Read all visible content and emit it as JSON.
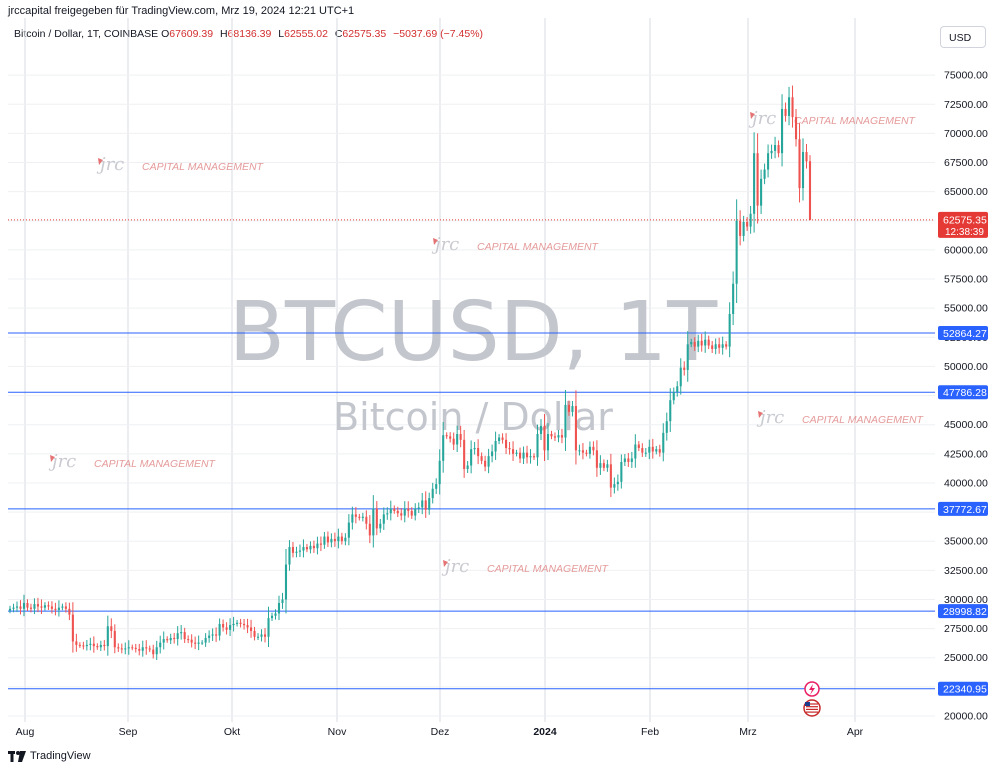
{
  "header": {
    "publisher": "jrccapital freigegeben für TradingView.com, Mrz 19, 2024 12:21 UTC+1"
  },
  "legend": {
    "symbol": "Bitcoin / Dollar, 1T, COINBASE",
    "open_label": "O",
    "open": "67609.39",
    "high_label": "H",
    "high": "68136.39",
    "low_label": "L",
    "low": "62555.02",
    "close_label": "C",
    "close": "62575.35",
    "change": "−5037.69 (−7.45%)"
  },
  "currency_button": "USD",
  "watermark": {
    "symbol": "BTCUSD, 1T",
    "name": "Bitcoin / Dollar"
  },
  "brand_watermark": {
    "mark": "jrc",
    "text": "CAPITAL MANAGEMENT"
  },
  "footer": {
    "brand": "TradingView"
  },
  "colors": {
    "up": "#26a69a",
    "down": "#ef5350",
    "hline": "#2962ff",
    "grid": "#d9dbe0",
    "price_tag": "#e53935",
    "level_tag": "#2962ff"
  },
  "chart_data": {
    "type": "candlestick",
    "title": "Bitcoin / Dollar, 1T, COINBASE",
    "ylim": [
      20000,
      77500
    ],
    "y_ticks": [
      "75000.00",
      "72500.00",
      "70000.00",
      "67500.00",
      "65000.00",
      "62500.00",
      "60000.00",
      "57500.00",
      "55000.00",
      "52500.00",
      "50000.00",
      "47500.00",
      "45000.00",
      "42500.00",
      "40000.00",
      "37500.00",
      "35000.00",
      "32500.00",
      "30000.00",
      "27500.00",
      "25000.00",
      "22500.00",
      "20000.00"
    ],
    "x_ticks": [
      "Aug",
      "Sep",
      "Okt",
      "Nov",
      "Dez",
      "2024",
      "Feb",
      "Mrz",
      "Apr"
    ],
    "horizontal_levels": [
      "52864.27",
      "47786.28",
      "37772.67",
      "28998.82",
      "22340.95"
    ],
    "last_price": {
      "value": "62575.35",
      "countdown": "12:38:39"
    },
    "ohlc_current": {
      "open": 67609.39,
      "high": 68136.39,
      "low": 62555.02,
      "close": 62575.35
    },
    "close_path": [
      [
        "Aug",
        29200
      ],
      [
        "Aug",
        29300
      ],
      [
        "Aug",
        29400
      ],
      [
        "Aug",
        29200
      ],
      [
        "Aug",
        29700
      ],
      [
        "Aug",
        29300
      ],
      [
        "Aug",
        29200
      ],
      [
        "Aug",
        29600
      ],
      [
        "Aug",
        29400
      ],
      [
        "Aug",
        29300
      ],
      [
        "Aug",
        29500
      ],
      [
        "Aug",
        29400
      ],
      [
        "Aug",
        29200
      ],
      [
        "Aug",
        29100
      ],
      [
        "Aug",
        29300
      ],
      [
        "Aug",
        29400
      ],
      [
        "Aug",
        29200
      ],
      [
        "Aug",
        28700
      ],
      [
        "Aug",
        26400
      ],
      [
        "Aug",
        26100
      ],
      [
        "Aug",
        26050
      ],
      [
        "Aug",
        26000
      ],
      [
        "Aug",
        26100
      ],
      [
        "Aug",
        26200
      ],
      [
        "Aug",
        26000
      ],
      [
        "Aug",
        25900
      ],
      [
        "Aug",
        26100
      ],
      [
        "Aug",
        26000
      ],
      [
        "Aug",
        27700
      ],
      [
        "Aug",
        27300
      ],
      [
        "Sep",
        25900
      ],
      [
        "Sep",
        25800
      ],
      [
        "Sep",
        25750
      ],
      [
        "Sep",
        25800
      ],
      [
        "Sep",
        25900
      ],
      [
        "Sep",
        25850
      ],
      [
        "Sep",
        25750
      ],
      [
        "Sep",
        25600
      ],
      [
        "Sep",
        25900
      ],
      [
        "Sep",
        25800
      ],
      [
        "Sep",
        25700
      ],
      [
        "Sep",
        25300
      ],
      [
        "Sep",
        25900
      ],
      [
        "Sep",
        26300
      ],
      [
        "Sep",
        26600
      ],
      [
        "Sep",
        26500
      ],
      [
        "Sep",
        26700
      ],
      [
        "Sep",
        26600
      ],
      [
        "Sep",
        27100
      ],
      [
        "Sep",
        27200
      ],
      [
        "Sep",
        26600
      ],
      [
        "Sep",
        26550
      ],
      [
        "Sep",
        26300
      ],
      [
        "Sep",
        26200
      ],
      [
        "Sep",
        26300
      ],
      [
        "Sep",
        26300
      ],
      [
        "Sep",
        26700
      ],
      [
        "Sep",
        26900
      ],
      [
        "Sep",
        27000
      ],
      [
        "Sep",
        26900
      ],
      [
        "Okt",
        27900
      ],
      [
        "Okt",
        27600
      ],
      [
        "Okt",
        27400
      ],
      [
        "Okt",
        27800
      ],
      [
        "Okt",
        27900
      ],
      [
        "Okt",
        28000
      ],
      [
        "Okt",
        27900
      ],
      [
        "Okt",
        27800
      ],
      [
        "Okt",
        27600
      ],
      [
        "Okt",
        27300
      ],
      [
        "Okt",
        26800
      ],
      [
        "Okt",
        26800
      ],
      [
        "Okt",
        27000
      ],
      [
        "Okt",
        26800
      ],
      [
        "Okt",
        28400
      ],
      [
        "Okt",
        28600
      ],
      [
        "Okt",
        28800
      ],
      [
        "Okt",
        29700
      ],
      [
        "Okt",
        30000
      ],
      [
        "Okt",
        33000
      ],
      [
        "Okt",
        34500
      ],
      [
        "Okt",
        34000
      ],
      [
        "Okt",
        34100
      ],
      [
        "Okt",
        34200
      ],
      [
        "Okt",
        34500
      ],
      [
        "Okt",
        34300
      ],
      [
        "Okt",
        34600
      ],
      [
        "Okt",
        34400
      ],
      [
        "Okt",
        34800
      ],
      [
        "Okt",
        34700
      ],
      [
        "Nov",
        35400
      ],
      [
        "Nov",
        34900
      ],
      [
        "Nov",
        35200
      ],
      [
        "Nov",
        35000
      ],
      [
        "Nov",
        35400
      ],
      [
        "Nov",
        35000
      ],
      [
        "Nov",
        35300
      ],
      [
        "Nov",
        36600
      ],
      [
        "Nov",
        37300
      ],
      [
        "Nov",
        37100
      ],
      [
        "Nov",
        37000
      ],
      [
        "Nov",
        37100
      ],
      [
        "Nov",
        36500
      ],
      [
        "Nov",
        35500
      ],
      [
        "Nov",
        37800
      ],
      [
        "Nov",
        36100
      ],
      [
        "Nov",
        36500
      ],
      [
        "Nov",
        37300
      ],
      [
        "Nov",
        37400
      ],
      [
        "Nov",
        37800
      ],
      [
        "Nov",
        37600
      ],
      [
        "Nov",
        37400
      ],
      [
        "Nov",
        37200
      ],
      [
        "Nov",
        37800
      ],
      [
        "Nov",
        37600
      ],
      [
        "Nov",
        37200
      ],
      [
        "Nov",
        37800
      ],
      [
        "Nov",
        37900
      ],
      [
        "Nov",
        38500
      ],
      [
        "Nov",
        37700
      ],
      [
        "Dez",
        38700
      ],
      [
        "Dez",
        39500
      ],
      [
        "Dez",
        39900
      ],
      [
        "Dez",
        41900
      ],
      [
        "Dez",
        44100
      ],
      [
        "Dez",
        44000
      ],
      [
        "Dez",
        43800
      ],
      [
        "Dez",
        43300
      ],
      [
        "Dez",
        44200
      ],
      [
        "Dez",
        43700
      ],
      [
        "Dez",
        41200
      ],
      [
        "Dez",
        41500
      ],
      [
        "Dez",
        42900
      ],
      [
        "Dez",
        43000
      ],
      [
        "Dez",
        42300
      ],
      [
        "Dez",
        41900
      ],
      [
        "Dez",
        41400
      ],
      [
        "Dez",
        42300
      ],
      [
        "Dez",
        42700
      ],
      [
        "Dez",
        43600
      ],
      [
        "Dez",
        43900
      ],
      [
        "Dez",
        43700
      ],
      [
        "Dez",
        43000
      ],
      [
        "Dez",
        42900
      ],
      [
        "Dez",
        42500
      ],
      [
        "Dez",
        42600
      ],
      [
        "Dez",
        42100
      ],
      [
        "Dez",
        42600
      ],
      [
        "Dez",
        42200
      ],
      [
        "Dez",
        42300
      ],
      [
        "Dez",
        42200
      ],
      [
        "2024",
        44200
      ],
      [
        "2024",
        44900
      ],
      [
        "2024",
        42800
      ],
      [
        "2024",
        44200
      ],
      [
        "2024",
        44000
      ],
      [
        "2024",
        43900
      ],
      [
        "2024",
        44100
      ],
      [
        "2024",
        43900
      ],
      [
        "2024",
        46700
      ],
      [
        "2024",
        46100
      ],
      [
        "2024",
        46600
      ],
      [
        "2024",
        42800
      ],
      [
        "2024",
        42800
      ],
      [
        "2024",
        42600
      ],
      [
        "2024",
        42500
      ],
      [
        "2024",
        43100
      ],
      [
        "2024",
        42800
      ],
      [
        "2024",
        41300
      ],
      [
        "2024",
        41700
      ],
      [
        "2024",
        41300
      ],
      [
        "2024",
        41600
      ],
      [
        "2024",
        39600
      ],
      [
        "2024",
        39900
      ],
      [
        "2024",
        40100
      ],
      [
        "2024",
        41800
      ],
      [
        "2024",
        42100
      ],
      [
        "2024",
        41800
      ],
      [
        "2024",
        42100
      ],
      [
        "2024",
        43300
      ],
      [
        "Feb",
        43000
      ],
      [
        "Feb",
        42600
      ],
      [
        "Feb",
        42600
      ],
      [
        "Feb",
        43100
      ],
      [
        "Feb",
        42700
      ],
      [
        "Feb",
        42900
      ],
      [
        "Feb",
        42600
      ],
      [
        "Feb",
        44300
      ],
      [
        "Feb",
        45300
      ],
      [
        "Feb",
        47100
      ],
      [
        "Feb",
        47800
      ],
      [
        "Feb",
        48300
      ],
      [
        "Feb",
        49900
      ],
      [
        "Feb",
        49700
      ],
      [
        "Feb",
        51900
      ],
      [
        "Feb",
        52100
      ],
      [
        "Feb",
        51700
      ],
      [
        "Feb",
        52200
      ],
      [
        "Feb",
        51800
      ],
      [
        "Feb",
        52300
      ],
      [
        "Feb",
        51800
      ],
      [
        "Feb",
        51500
      ],
      [
        "Feb",
        51900
      ],
      [
        "Feb",
        51600
      ],
      [
        "Feb",
        51900
      ],
      [
        "Feb",
        51700
      ],
      [
        "Feb",
        54500
      ],
      [
        "Feb",
        57100
      ],
      [
        "Feb",
        62500
      ],
      [
        "Feb",
        61200
      ],
      [
        "Mrz",
        62400
      ],
      [
        "Mrz",
        62000
      ],
      [
        "Mrz",
        63100
      ],
      [
        "Mrz",
        68300
      ],
      [
        "Mrz",
        63800
      ],
      [
        "Mrz",
        66100
      ],
      [
        "Mrz",
        66900
      ],
      [
        "Mrz",
        68300
      ],
      [
        "Mrz",
        68500
      ],
      [
        "Mrz",
        69000
      ],
      [
        "Mrz",
        68300
      ],
      [
        "Mrz",
        72100
      ],
      [
        "Mrz",
        71500
      ],
      [
        "Mrz",
        73100
      ],
      [
        "Mrz",
        71400
      ],
      [
        "Mrz",
        69500
      ],
      [
        "Mrz",
        65300
      ],
      [
        "Mrz",
        68400
      ],
      [
        "Mrz",
        67600
      ],
      [
        "Mrz",
        62575
      ]
    ]
  }
}
